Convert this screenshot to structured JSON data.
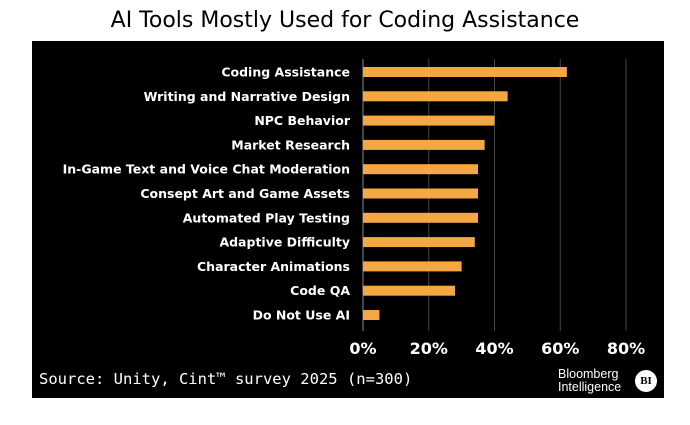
{
  "title": "AI Tools Mostly Used for Coding Assistance",
  "source": "Source: Unity, Cint™ survey 2025 (n=300)",
  "brand": {
    "line1": "Bloomberg",
    "line2": "Intelligence",
    "badge": "BI"
  },
  "colors": {
    "background": "#000000",
    "bar": "#f5a742",
    "grid": "#444444",
    "text": "#ffffff"
  },
  "chart_data": {
    "type": "bar",
    "orientation": "horizontal",
    "categories": [
      "Coding Assistance",
      "Writing and Narrative Design",
      "NPC Behavior",
      "Market Research",
      "In-Game Text and Voice Chat Moderation",
      "Consept Art and Game Assets",
      "Automated Play Testing",
      "Adaptive Difficulty",
      "Character Animations",
      "Code QA",
      "Do Not Use AI"
    ],
    "values": [
      62,
      44,
      40,
      37,
      35,
      35,
      35,
      34,
      30,
      28,
      5
    ],
    "unit": "%",
    "xlim": [
      0,
      80
    ],
    "xticks": [
      "0%",
      "20%",
      "40%",
      "60%",
      "80%"
    ],
    "grid": "vertical",
    "title": "AI Tools Mostly Used for Coding Assistance"
  }
}
